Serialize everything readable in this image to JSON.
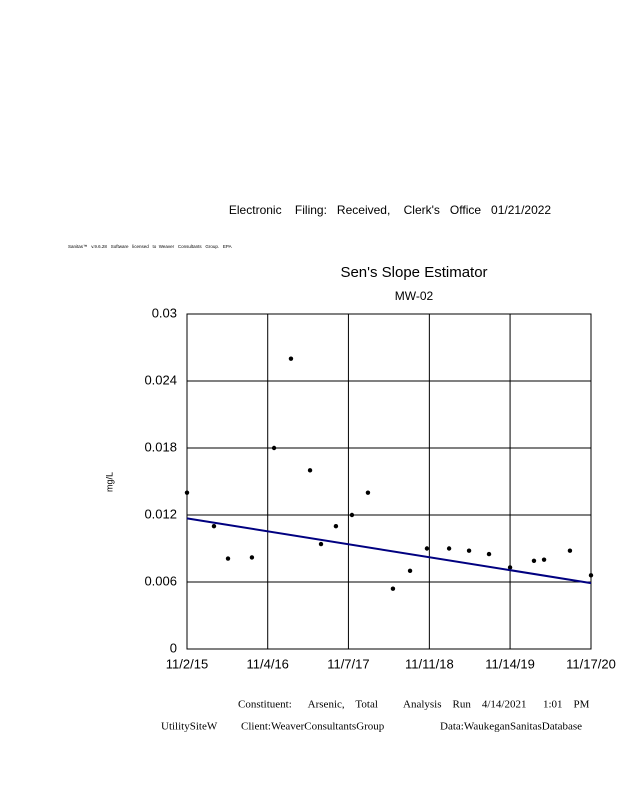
{
  "header": {
    "filing": "Electronic    Filing:   Received,    Clerk's   Office   01/21/2022",
    "software": "Sanitas™   v.9.6.28   Software   licensed   to  Weaver   Consultants   Group.   EPA"
  },
  "chart_data": {
    "type": "scatter",
    "title": "Sen's Slope Estimator",
    "subtitle": "MW-02",
    "y_label": "mg/L",
    "x": [
      "2015-11-02",
      "2016-03-04",
      "2016-05-07",
      "2016-08-24",
      "2016-12-03",
      "2017-02-18",
      "2017-05-16",
      "2017-07-05",
      "2017-09-11",
      "2017-11-23",
      "2018-02-04",
      "2018-05-29",
      "2018-08-15",
      "2018-10-31",
      "2019-02-09",
      "2019-05-11",
      "2019-08-10",
      "2019-11-14",
      "2020-03-02",
      "2020-04-17",
      "2020-08-13",
      "2020-11-17"
    ],
    "values": [
      0.014,
      0.011,
      0.0081,
      0.0082,
      0.018,
      0.026,
      0.016,
      0.0094,
      0.011,
      0.012,
      0.014,
      0.0054,
      0.007,
      0.009,
      0.009,
      0.0088,
      0.0085,
      0.0073,
      0.0079,
      0.008,
      0.0088,
      0.0066
    ],
    "color": "#000000",
    "trend_line": {
      "x": [
        "2015-11-02",
        "2020-11-17"
      ],
      "values": [
        0.0117,
        0.0059
      ],
      "color": "#000080"
    },
    "xlim": [
      "2015-11-02",
      "2020-11-17"
    ],
    "xticks": [
      {
        "value": "2015-11-02",
        "label": "11/2/15"
      },
      {
        "value": "2016-11-04",
        "label": "11/4/16"
      },
      {
        "value": "2017-11-07",
        "label": "11/7/17"
      },
      {
        "value": "2018-11-11",
        "label": "11/11/18"
      },
      {
        "value": "2019-11-14",
        "label": "11/14/19"
      },
      {
        "value": "2020-11-17",
        "label": "11/17/20"
      }
    ],
    "ylim": [
      0,
      0.03
    ],
    "yticks": [
      0,
      0.006,
      0.012,
      0.018,
      0.024,
      0.03
    ],
    "grid": true
  },
  "footer": {
    "constituent": "Constituent:      Arsenic,    Total",
    "run": "Analysis    Run    4/14/2021      1:01    PM",
    "site": "UtilitySiteW",
    "client": "Client:WeaverConsultantsGroup",
    "data": "Data:WaukeganSanitasDatabase"
  }
}
